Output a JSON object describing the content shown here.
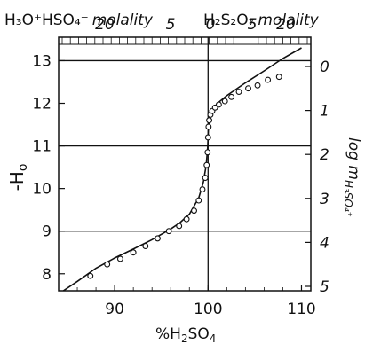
{
  "chart_data": {
    "type": "scatter",
    "xlabel": {
      "prefix": "%H",
      "sub1": "2",
      "mid": "SO",
      "sub2": "4"
    },
    "ylabel_left": {
      "main": "-H",
      "sub": "o"
    },
    "ylabel_right": {
      "main": "log m",
      "sub": "H₃SO₄⁺"
    },
    "top_label_left": {
      "main": "H₃O⁺HSO₄⁻",
      "suffix": "molality"
    },
    "top_label_right": {
      "main": "H₂S₂O₇",
      "suffix": "molality"
    },
    "x_ticks": [
      "90",
      "100",
      "110"
    ],
    "y_ticks_left": [
      "8",
      "9",
      "10",
      "11",
      "12",
      "13"
    ],
    "y_ticks_right": [
      "0",
      "1",
      "2",
      "3",
      "4",
      "5"
    ],
    "top_ticks": [
      "20",
      "5",
      "0",
      "5",
      "20"
    ],
    "xlim": [
      84,
      111
    ],
    "ylim": [
      7.6,
      13.55
    ],
    "grid_y": [
      9,
      11,
      13
    ],
    "vline_x": 100,
    "curve": {
      "x": [
        84.5,
        86,
        88,
        90,
        92,
        94,
        96,
        97,
        98,
        99,
        99.5,
        99.8,
        99.95,
        100,
        100.05,
        100.2,
        100.5,
        101,
        102,
        104,
        106,
        108,
        110
      ],
      "y": [
        7.6,
        7.82,
        8.13,
        8.37,
        8.58,
        8.8,
        9.05,
        9.2,
        9.4,
        9.78,
        10.15,
        10.55,
        10.95,
        11.2,
        11.45,
        11.65,
        11.85,
        12.0,
        12.18,
        12.48,
        12.76,
        13.05,
        13.3
      ]
    },
    "points": {
      "x": [
        87.4,
        89.2,
        90.6,
        92.0,
        93.3,
        94.6,
        95.8,
        96.9,
        97.7,
        98.5,
        99.0,
        99.4,
        99.7,
        99.85,
        99.95,
        100.0,
        100.05,
        100.12,
        100.25,
        100.45,
        100.75,
        101.15,
        101.8,
        102.5,
        103.3,
        104.3,
        105.3,
        106.4,
        107.6
      ],
      "y": [
        7.95,
        8.22,
        8.35,
        8.5,
        8.65,
        8.83,
        9.0,
        9.12,
        9.28,
        9.48,
        9.72,
        9.98,
        10.25,
        10.55,
        10.85,
        11.2,
        11.45,
        11.6,
        11.73,
        11.82,
        11.9,
        11.97,
        12.05,
        12.15,
        12.27,
        12.35,
        12.42,
        12.55,
        12.62
      ]
    }
  }
}
